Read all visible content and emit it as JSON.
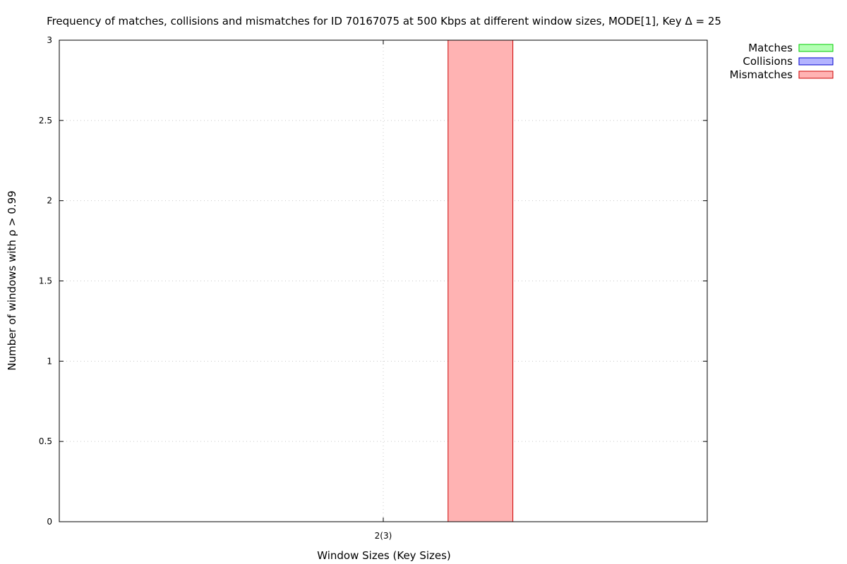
{
  "chart_data": {
    "type": "bar",
    "title": "Frequency of matches, collisions and mismatches for ID 70167075 at 500 Kbps at different window sizes, MODE[1], Key Δ = 25",
    "xlabel": "Window Sizes (Key Sizes)",
    "ylabel": "Number of windows with ρ > 0.99",
    "categories": [
      "2(3)"
    ],
    "ylim": [
      0,
      3
    ],
    "yticks": [
      0,
      0.5,
      1,
      1.5,
      2,
      2.5,
      3
    ],
    "ytick_labels": [
      "0",
      "0.5",
      "1",
      "1.5",
      "2",
      "2.5",
      "3"
    ],
    "grid": true,
    "legend_position": "outside-top-right",
    "series": [
      {
        "name": "Matches",
        "values": [
          0
        ],
        "fill": "#b3ffb3",
        "stroke": "#00cc00"
      },
      {
        "name": "Collisions",
        "values": [
          0
        ],
        "fill": "#b3b3ff",
        "stroke": "#0000cc"
      },
      {
        "name": "Mismatches",
        "values": [
          3
        ],
        "fill": "#ffb3b3",
        "stroke": "#cc0000"
      }
    ]
  }
}
